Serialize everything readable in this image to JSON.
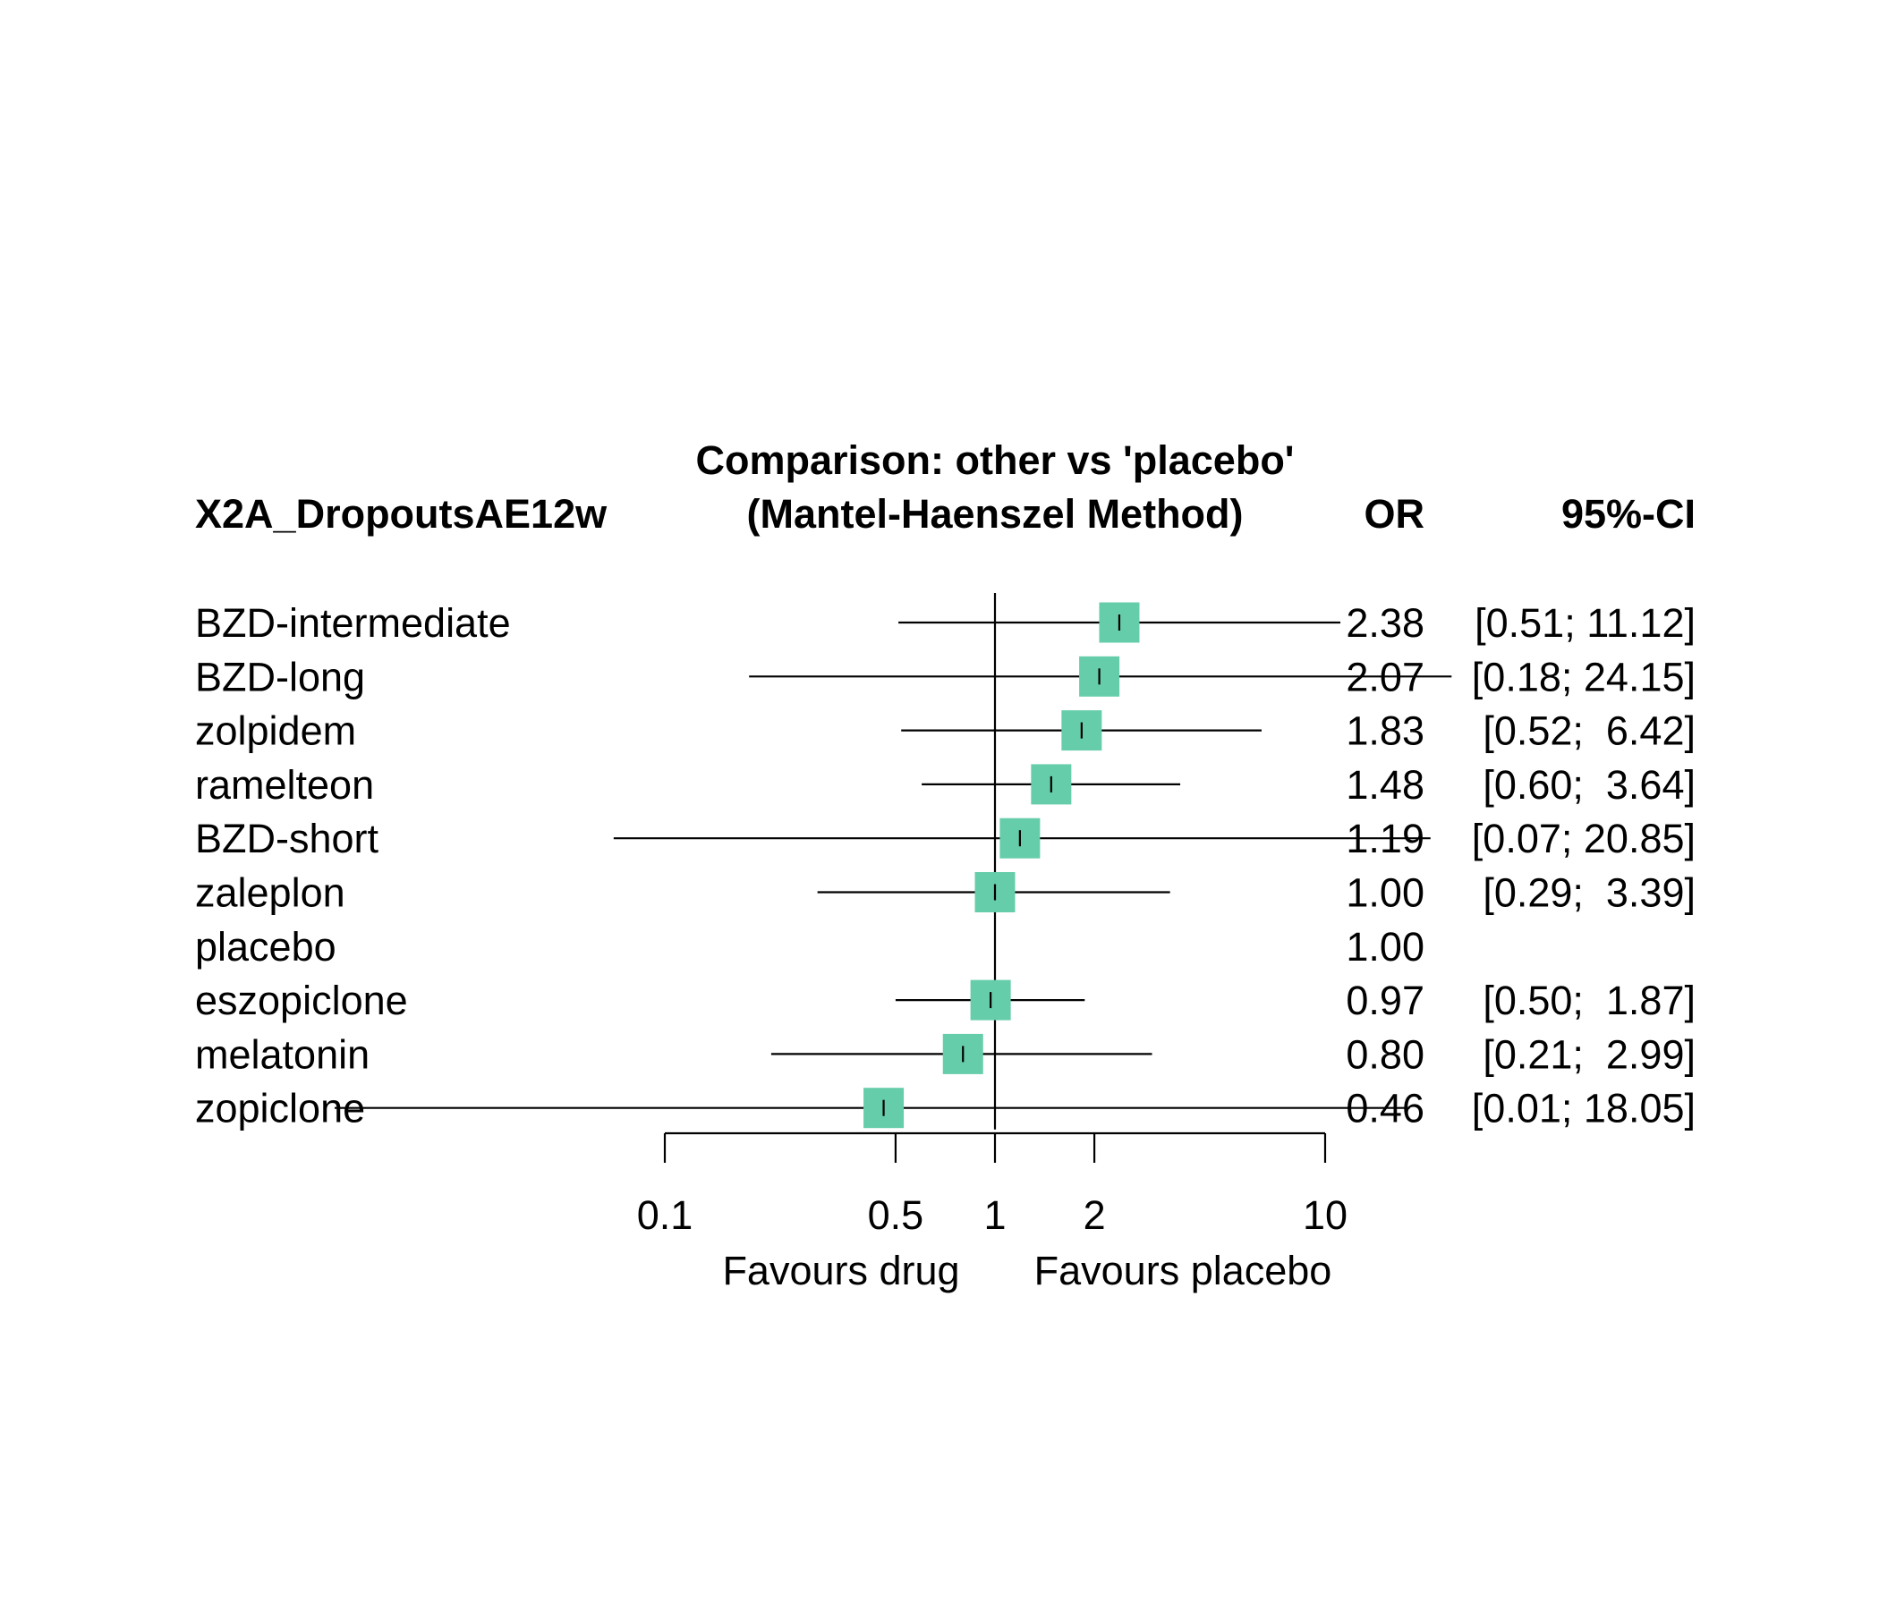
{
  "header": {
    "comparison": "Comparison: other vs 'placebo'",
    "outcome": "X2A_DropoutsAE12w",
    "method": "(Mantel-Haenszel Method)",
    "or_label": "OR",
    "ci_label": "95%-CI"
  },
  "x_labels": {
    "left": "Favours drug",
    "right": "Favours placebo"
  },
  "colors": {
    "box": "#66CDAA",
    "line": "#000000"
  },
  "chart_data": {
    "type": "forest",
    "scale": "log",
    "reference": 1,
    "xticks": [
      0.1,
      0.5,
      1,
      2,
      10
    ],
    "xtick_labels": [
      "0.1",
      "0.5",
      "1",
      "2",
      "10"
    ],
    "rows": [
      {
        "label": "BZD-intermediate",
        "or": 2.38,
        "lower": 0.51,
        "upper": 11.12,
        "or_text": "2.38",
        "ci_text": "[0.51; 11.12]"
      },
      {
        "label": "BZD-long",
        "or": 2.07,
        "lower": 0.18,
        "upper": 24.15,
        "or_text": "2.07",
        "ci_text": "[0.18; 24.15]"
      },
      {
        "label": "zolpidem",
        "or": 1.83,
        "lower": 0.52,
        "upper": 6.42,
        "or_text": "1.83",
        "ci_text": "[0.52;  6.42]"
      },
      {
        "label": "ramelteon",
        "or": 1.48,
        "lower": 0.6,
        "upper": 3.64,
        "or_text": "1.48",
        "ci_text": "[0.60;  3.64]"
      },
      {
        "label": "BZD-short",
        "or": 1.19,
        "lower": 0.07,
        "upper": 20.85,
        "or_text": "1.19",
        "ci_text": "[0.07; 20.85]"
      },
      {
        "label": "zaleplon",
        "or": 1.0,
        "lower": 0.29,
        "upper": 3.39,
        "or_text": "1.00",
        "ci_text": "[0.29;  3.39]"
      },
      {
        "label": "placebo",
        "or": 1.0,
        "lower": null,
        "upper": null,
        "or_text": "1.00",
        "ci_text": ""
      },
      {
        "label": "eszopiclone",
        "or": 0.97,
        "lower": 0.5,
        "upper": 1.87,
        "or_text": "0.97",
        "ci_text": "[0.50;  1.87]"
      },
      {
        "label": "melatonin",
        "or": 0.8,
        "lower": 0.21,
        "upper": 2.99,
        "or_text": "0.80",
        "ci_text": "[0.21;  2.99]"
      },
      {
        "label": "zopiclone",
        "or": 0.46,
        "lower": 0.01,
        "upper": 18.05,
        "or_text": "0.46",
        "ci_text": "[0.01; 18.05]"
      }
    ]
  }
}
